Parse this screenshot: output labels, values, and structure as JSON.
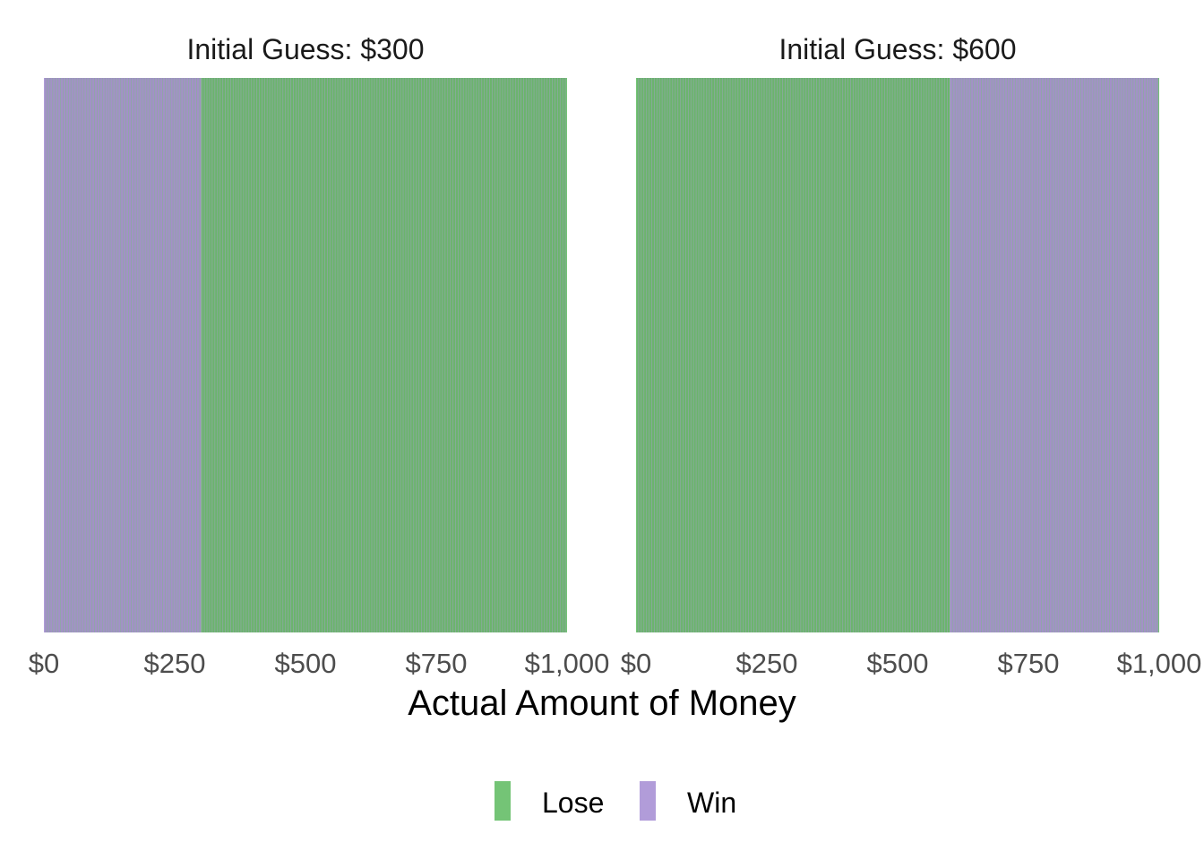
{
  "chart_data": {
    "type": "bar",
    "description_units": "dollars",
    "xlabel": "Actual Amount of Money",
    "ylabel": "",
    "x_range": [
      0,
      1000
    ],
    "x_ticks": [
      0,
      250,
      500,
      750,
      1000
    ],
    "x_tick_labels": [
      "$0",
      "$250",
      "$500",
      "$750",
      "$1,000"
    ],
    "grid": false,
    "legend_position": "bottom",
    "colors": {
      "Lose": "#74c476",
      "Win": "#b19cd9"
    },
    "legend": [
      {
        "label": "Lose",
        "color": "#74c476"
      },
      {
        "label": "Win",
        "color": "#b19cd9"
      }
    ],
    "facets": [
      {
        "title": "Initial Guess: $300",
        "guess": 300,
        "segments": [
          {
            "outcome": "Win",
            "from": 0,
            "to": 300
          },
          {
            "outcome": "Lose",
            "from": 300,
            "to": 1000
          }
        ]
      },
      {
        "title": "Initial Guess: $600",
        "guess": 600,
        "segments": [
          {
            "outcome": "Lose",
            "from": 0,
            "to": 600
          },
          {
            "outcome": "Win",
            "from": 600,
            "to": 1000
          }
        ]
      }
    ]
  }
}
